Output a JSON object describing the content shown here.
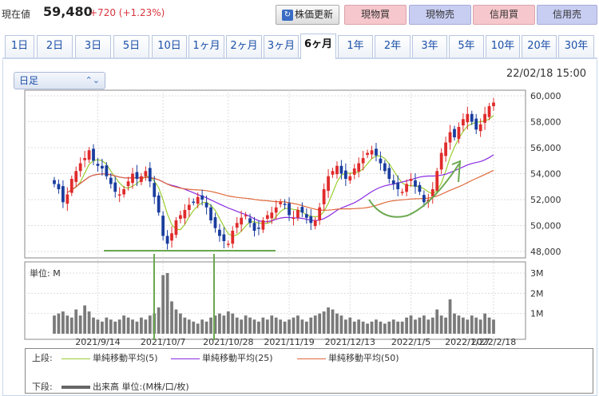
{
  "header": {
    "price_label": "現在値",
    "price": "59,480",
    "change": "+720 (+1.23%)",
    "update_label": "株価更新",
    "buttons": [
      "現物買",
      "現物売",
      "信用買",
      "信用売"
    ]
  },
  "tabs": [
    "1日",
    "2日",
    "3日",
    "5日",
    "10日",
    "1ヶ月",
    "2ヶ月",
    "3ヶ月",
    "6ヶ月",
    "1年",
    "2年",
    "3年",
    "5年",
    "10年",
    "20年",
    "30年"
  ],
  "active_tab": "6ヶ月",
  "period_select": "日足",
  "timestamp": "22/02/18 15:00",
  "volume_unit_label": "単位: M",
  "legend": {
    "upper_label": "上段:",
    "lower_label": "下段:",
    "ma5": "単純移動平均(5)",
    "ma25": "単純移動平均(25)",
    "ma50": "単純移動平均(50)",
    "volume": "出来高 単位:(M株/口/枚)"
  },
  "colors": {
    "up": "#e02b2b",
    "down": "#1a3d9e",
    "ma5": "#9acd32",
    "ma25": "#8a2be2",
    "ma50": "#e06a3c",
    "volume": "#7a7a7a",
    "annotation": "#6aa84f"
  },
  "chart_data": {
    "type": "candlestick",
    "x_tick_labels": [
      "2021/9/14",
      "2021/10/7",
      "2021/10/28",
      "2021/11/19",
      "2021/12/13",
      "2022/1/5",
      "2022/1/27",
      "2022/2/18"
    ],
    "price_ticks": [
      "60,000",
      "58,000",
      "56,000",
      "54,000",
      "52,000",
      "50,000",
      "48,000"
    ],
    "price_range": [
      47800,
      60200
    ],
    "volume_ticks": [
      "3M",
      "2M",
      "1M"
    ],
    "volume_range": [
      0,
      3.5
    ],
    "closes": [
      53200,
      52800,
      51800,
      52400,
      53600,
      54200,
      54800,
      55200,
      55800,
      55000,
      54600,
      54400,
      53800,
      53200,
      52600,
      52400,
      52800,
      53400,
      54000,
      53600,
      53800,
      54200,
      53400,
      52200,
      51000,
      49200,
      48600,
      49400,
      50400,
      50800,
      51200,
      51600,
      51800,
      52200,
      52000,
      51400,
      50400,
      49800,
      49200,
      48800,
      48600,
      49600,
      50200,
      50600,
      50800,
      50200,
      49600,
      49800,
      50400,
      50800,
      51000,
      51400,
      51800,
      51600,
      50800,
      50600,
      51200,
      51000,
      50600,
      50200,
      50400,
      51400,
      52800,
      53800,
      54200,
      54600,
      54000,
      53600,
      53800,
      54400,
      54800,
      55200,
      55600,
      55800,
      55400,
      54800,
      54200,
      53600,
      53200,
      52800,
      52600,
      53200,
      53600,
      53000,
      52600,
      51800,
      52000,
      52800,
      54200,
      55600,
      56400,
      57200,
      56800,
      57600,
      58200,
      58600,
      58000,
      57400,
      57800,
      58600,
      59200,
      59480
    ],
    "volumes": [
      0.9,
      1.0,
      1.1,
      0.9,
      0.8,
      1.2,
      0.9,
      1.4,
      1.1,
      0.8,
      0.7,
      0.6,
      0.8,
      0.7,
      0.6,
      0.7,
      0.9,
      0.8,
      0.7,
      0.6,
      0.8,
      0.7,
      0.9,
      1.0,
      1.3,
      2.9,
      3.0,
      1.6,
      1.2,
      1.0,
      0.8,
      0.7,
      0.6,
      0.5,
      0.7,
      0.6,
      0.8,
      0.9,
      1.0,
      0.9,
      1.1,
      1.0,
      0.8,
      0.7,
      0.9,
      0.8,
      0.7,
      0.6,
      0.8,
      0.7,
      0.9,
      0.8,
      0.7,
      0.6,
      0.7,
      0.8,
      0.9,
      0.7,
      0.6,
      0.8,
      0.9,
      1.0,
      1.1,
      1.3,
      1.2,
      1.0,
      0.9,
      0.7,
      0.8,
      0.6,
      0.7,
      0.6,
      0.5,
      0.6,
      0.7,
      0.6,
      0.5,
      0.6,
      0.7,
      0.6,
      0.6,
      0.8,
      0.9,
      0.7,
      0.8,
      0.9,
      0.7,
      0.8,
      1.2,
      0.9,
      0.8,
      1.7,
      1.0,
      0.9,
      0.8,
      0.7,
      0.9,
      0.8,
      0.7,
      1.0,
      0.8,
      0.7
    ]
  }
}
